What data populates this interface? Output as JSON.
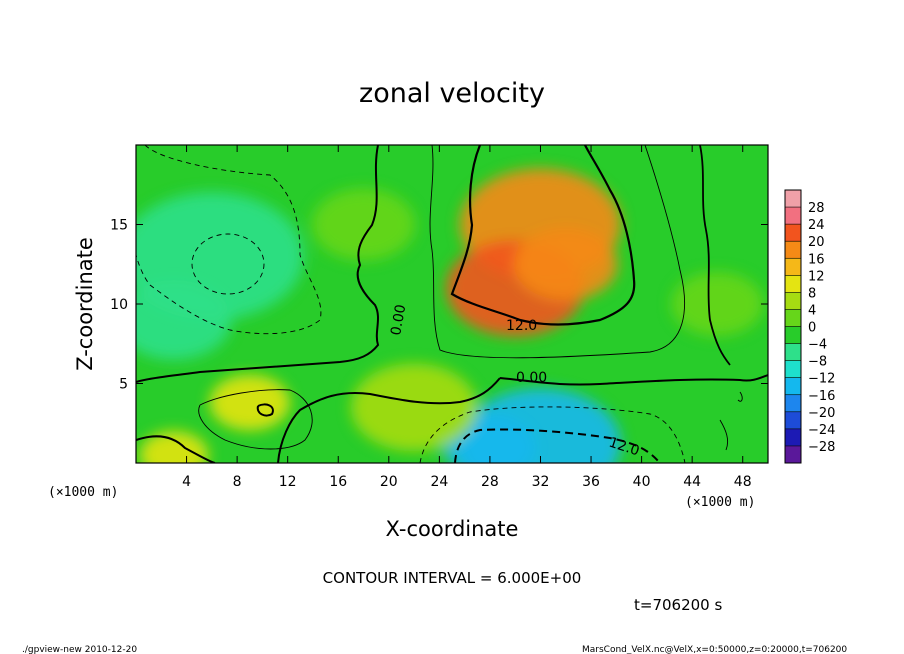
{
  "chart_data": {
    "type": "heatmap",
    "title": "zonal velocity",
    "xlabel": "X-coordinate",
    "ylabel": "Z-coordinate",
    "x_unit_label": "(×1000 m)",
    "y_unit_label": "(×1000 m)",
    "xlim": [
      0,
      50
    ],
    "ylim": [
      0,
      20
    ],
    "x_ticks": [
      4,
      8,
      12,
      16,
      20,
      24,
      28,
      32,
      36,
      40,
      44,
      48
    ],
    "y_ticks": [
      5,
      10,
      15
    ],
    "colorbar_levels": [
      -28,
      -24,
      -20,
      -16,
      -12,
      -8,
      -4,
      0,
      4,
      8,
      12,
      16,
      20,
      24,
      28
    ],
    "colorbar_colors": [
      "#5a189a",
      "#1c1ab4",
      "#1d4cd8",
      "#1d86ee",
      "#14b8ee",
      "#1ee0cc",
      "#2ee08a",
      "#28cc2a",
      "#66d61a",
      "#a6dc12",
      "#e4e412",
      "#f5b818",
      "#f58a16",
      "#f2541e",
      "#f27080",
      "#f0a0a8"
    ],
    "contour_labels": [
      "12.0",
      "0.00",
      "0.00",
      "12.0"
    ],
    "field_features": [
      {
        "x": 32,
        "z": 15,
        "value": 18
      },
      {
        "x": 30,
        "z": 11,
        "value": 20
      },
      {
        "x": 34,
        "z": 12.5,
        "value": 16
      },
      {
        "x": 6,
        "z": 13,
        "value": -7
      },
      {
        "x": 3,
        "z": 9,
        "value": -6
      },
      {
        "x": 32,
        "z": 1.2,
        "value": -15
      },
      {
        "x": 28,
        "z": 1,
        "value": -16
      },
      {
        "x": 9,
        "z": 3.8,
        "value": 10
      },
      {
        "x": 3,
        "z": 0.5,
        "value": 10
      },
      {
        "x": 22,
        "z": 3.5,
        "value": 5
      },
      {
        "x": 46,
        "z": 10,
        "value": 2
      },
      {
        "x": 18,
        "z": 15,
        "value": 2
      }
    ],
    "contour_interval_text": "CONTOUR INTERVAL = 6.000E+00",
    "time_text": "t=706200 s"
  },
  "footer": {
    "left": "./gpview-new  2010-12-20",
    "right": "MarsCond_VelX.nc@VelX,x=0:50000,z=0:20000,t=706200"
  }
}
